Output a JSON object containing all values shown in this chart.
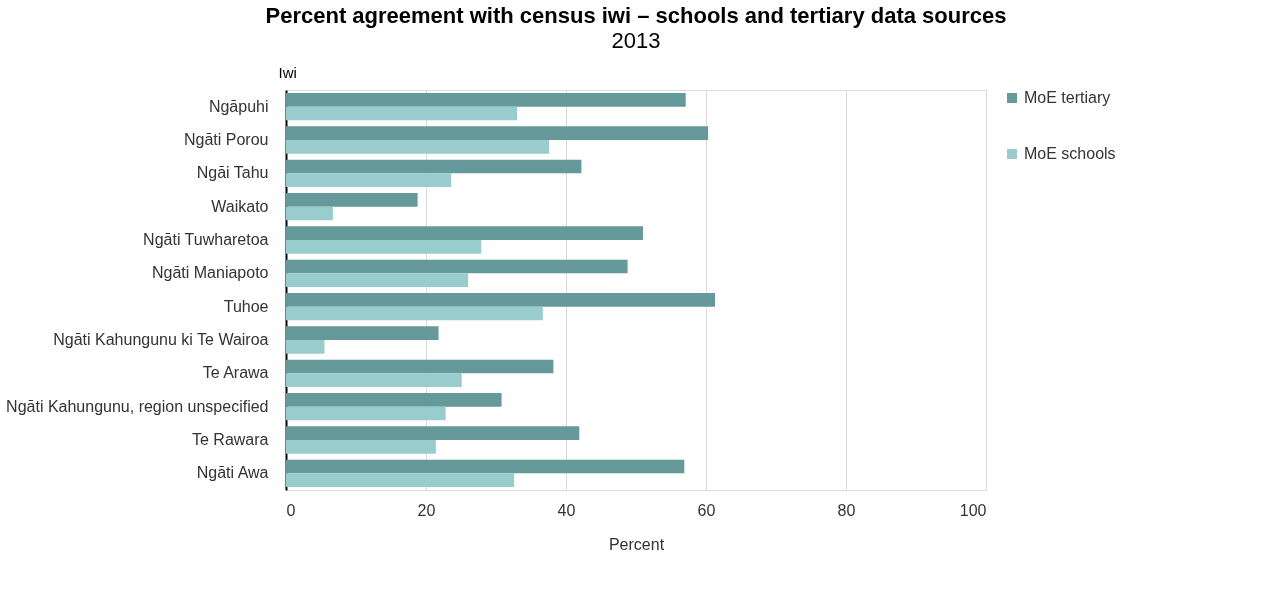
{
  "chart_data": {
    "type": "bar",
    "orientation": "horizontal",
    "title": "Percent agreement with census iwi – schools and tertiary data sources",
    "subtitle": "2013",
    "xlabel": "Percent",
    "ylabel": "Iwi",
    "categories": [
      "Ngāpuhi",
      "Ngāti Porou",
      "Ngāi Tahu",
      "Waikato",
      "Ngāti Tuwharetoa",
      "Ngāti Maniapoto",
      "Tuhoe",
      "Ngāti Kahungunu ki Te Wairoa",
      "Te Arawa",
      "Ngāti Kahungunu, region unspecified",
      "Te Rawara",
      "Ngāti Awa"
    ],
    "series": [
      {
        "name": "MoE tertiary",
        "color": "#669999",
        "values": [
          57.1,
          60.3,
          42.2,
          18.8,
          51.0,
          48.8,
          61.3,
          21.8,
          38.2,
          30.8,
          41.9,
          56.9
        ]
      },
      {
        "name": "MoE schools",
        "color": "#99cccc",
        "values": [
          33.0,
          37.6,
          23.6,
          6.7,
          27.9,
          26.0,
          36.7,
          5.5,
          25.1,
          22.8,
          21.4,
          32.6
        ]
      }
    ],
    "xlim": [
      0,
      100
    ],
    "xticks": [
      0,
      20,
      40,
      60,
      80,
      100
    ],
    "grid": "x",
    "legend": "right"
  }
}
